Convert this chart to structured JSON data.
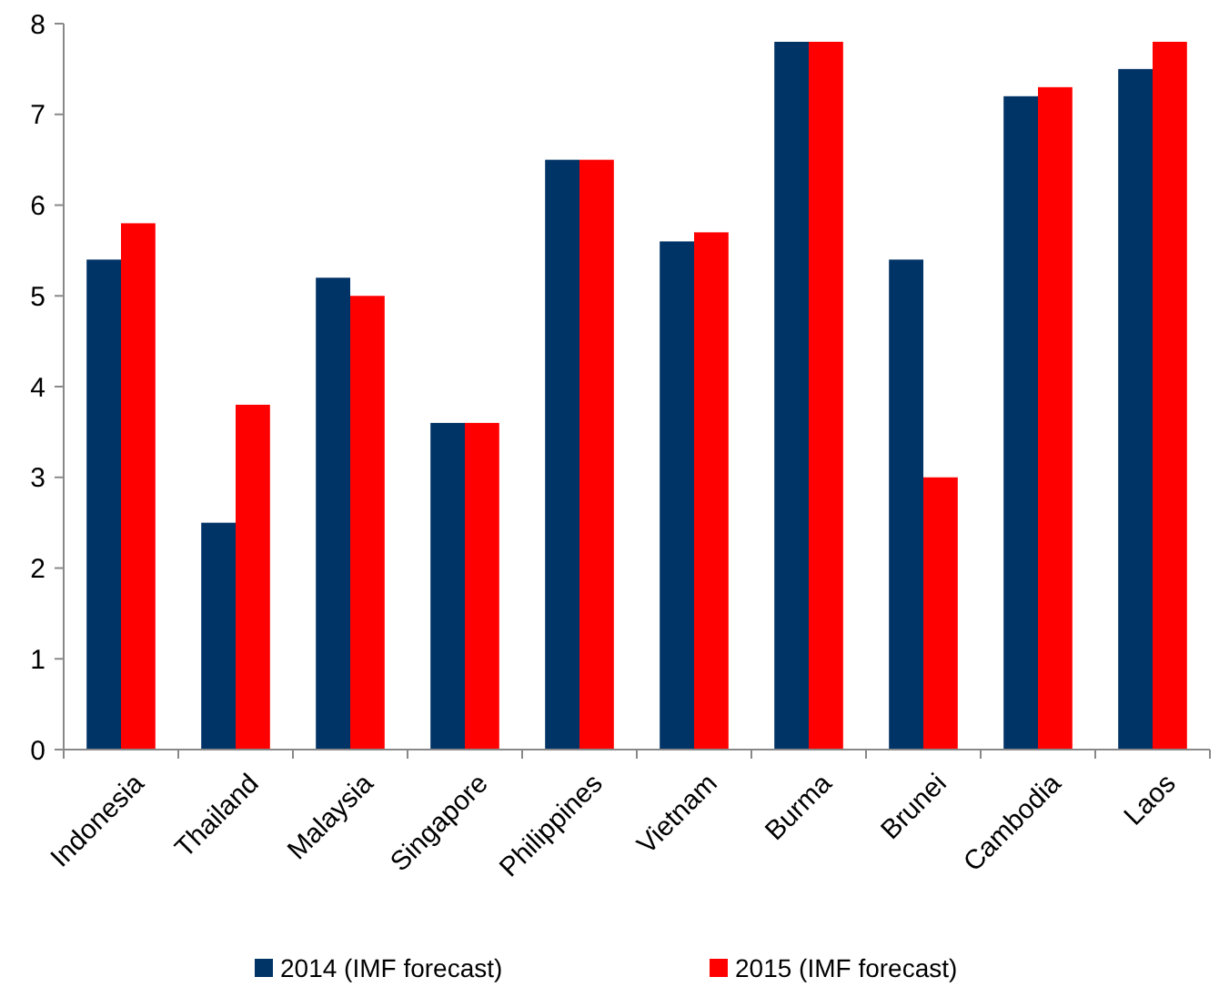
{
  "chart_data": {
    "type": "bar",
    "categories": [
      "Indonesia",
      "Thailand",
      "Malaysia",
      "Singapore",
      "Philippines",
      "Vietnam",
      "Burma",
      "Brunei",
      "Cambodia",
      "Laos"
    ],
    "series": [
      {
        "name": "2014 (IMF forecast)",
        "color": "#003366",
        "values": [
          5.4,
          2.5,
          5.2,
          3.6,
          6.5,
          5.6,
          7.8,
          5.4,
          7.2,
          7.5
        ]
      },
      {
        "name": "2015 (IMF forecast)",
        "color": "#ff0000",
        "values": [
          5.8,
          3.8,
          5.0,
          3.6,
          6.5,
          5.7,
          7.8,
          3.0,
          7.3,
          7.8
        ]
      }
    ],
    "ylim": [
      0,
      8
    ],
    "yticks": [
      0,
      1,
      2,
      3,
      4,
      5,
      6,
      7,
      8
    ],
    "grid": false,
    "legend": "bottom"
  }
}
